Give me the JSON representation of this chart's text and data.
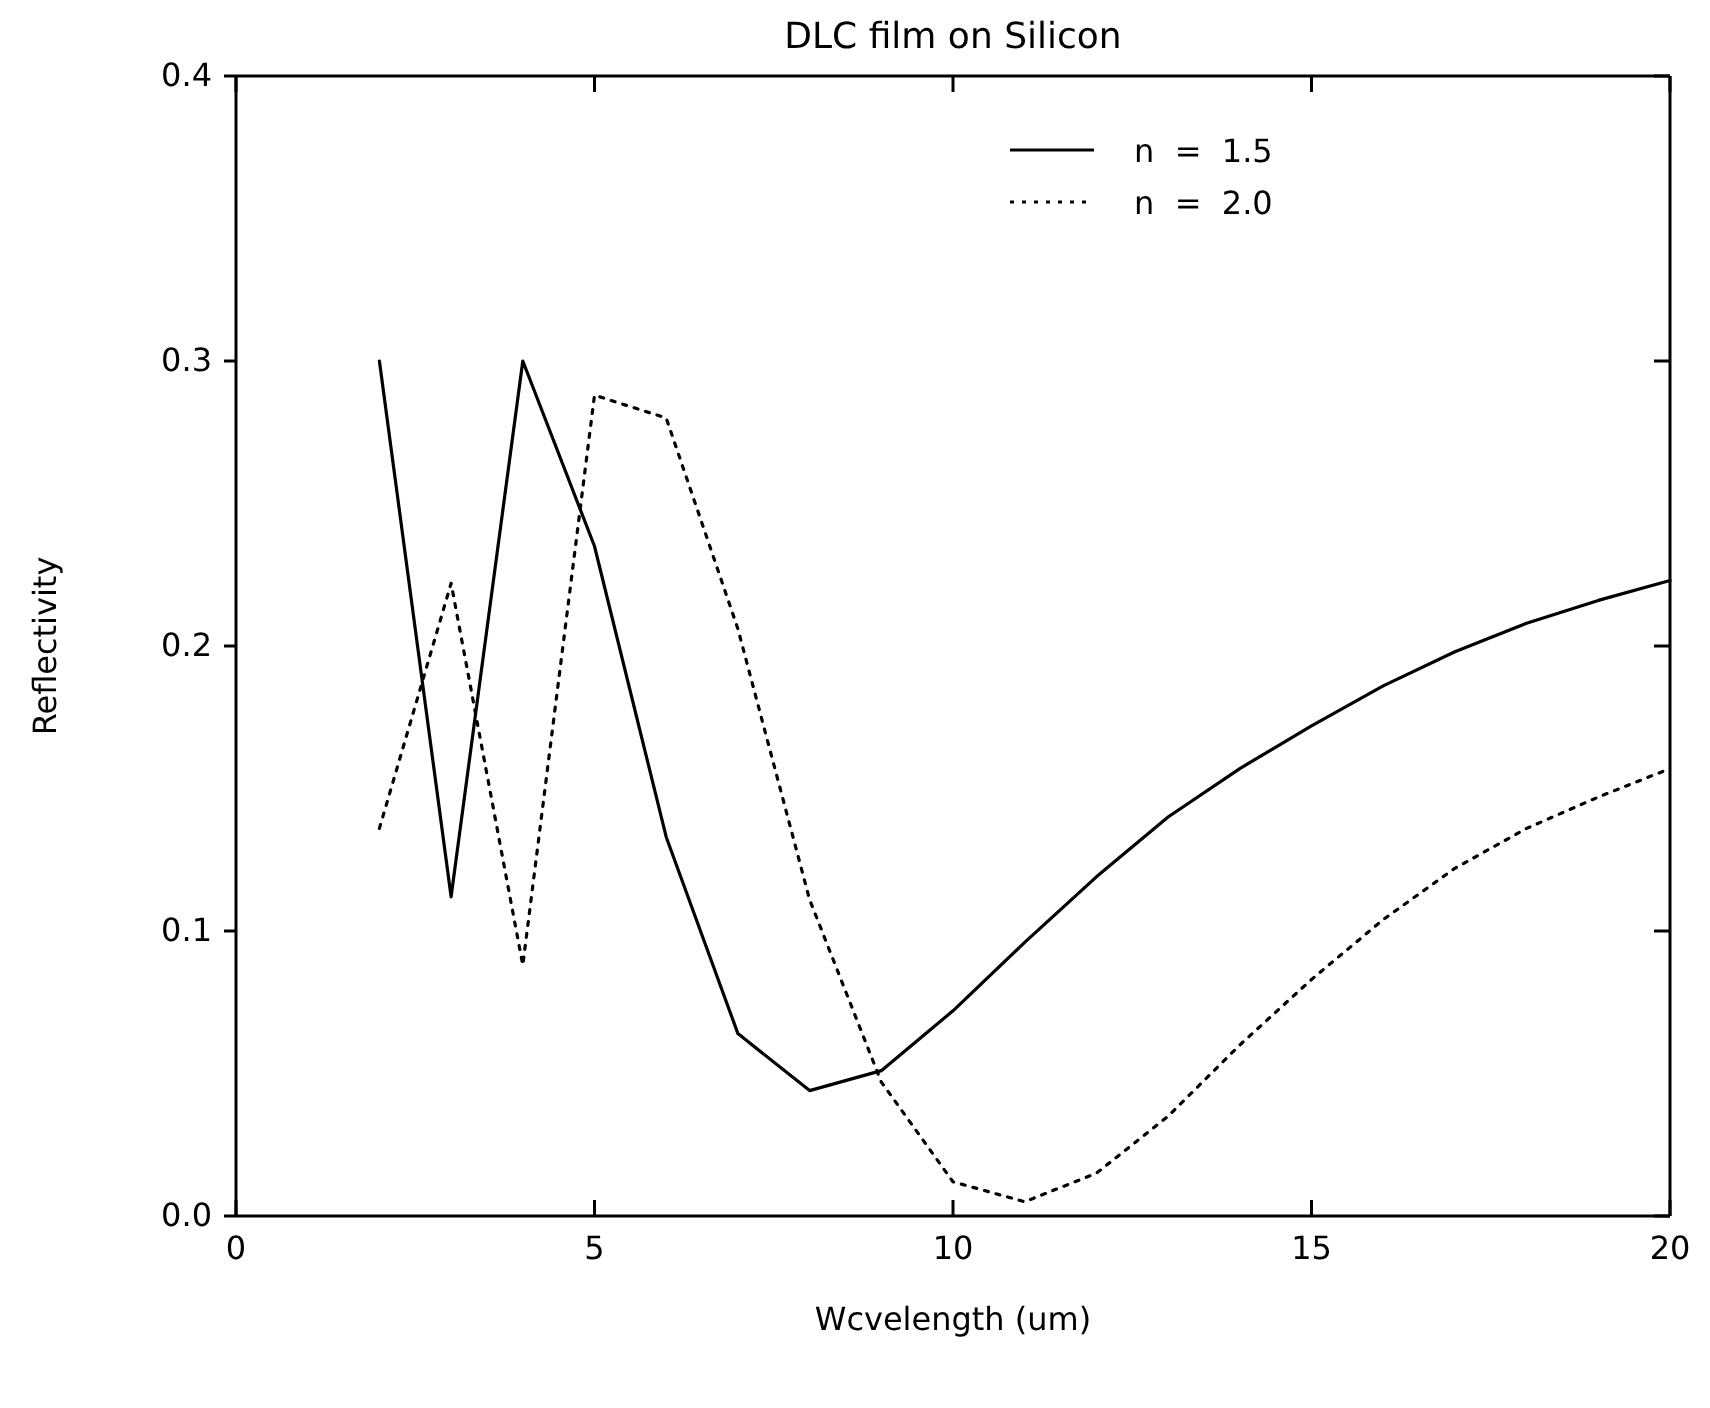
{
  "chart_data": {
    "type": "line",
    "title": "DLC film on Silicon",
    "xlabel": "Wcvelength (um)",
    "ylabel": "Reflectivity",
    "xlim": [
      0,
      20
    ],
    "xticks": [
      0,
      5,
      10,
      15,
      20
    ],
    "ylim": [
      0,
      0.4
    ],
    "yticks": [
      {
        "value": 0,
        "label": "0.0"
      },
      {
        "value": 0.1,
        "label": "0.1"
      },
      {
        "value": 0.2,
        "label": "0.2"
      },
      {
        "value": 0.3,
        "label": "0.3"
      },
      {
        "value": 0.4,
        "label": "0.4"
      }
    ],
    "x": [
      2,
      3,
      4,
      5,
      6,
      7,
      8,
      9,
      10,
      11,
      12,
      13,
      14,
      15,
      16,
      17,
      18,
      19,
      20
    ],
    "legend": "top right",
    "grid": false,
    "series": [
      {
        "name": "n  =  1.5",
        "color": "#000000",
        "line_style": "solid",
        "values": [
          0.3,
          0.112,
          0.3,
          0.235,
          0.133,
          0.064,
          0.044,
          0.051,
          0.072,
          0.096,
          0.119,
          0.14,
          0.157,
          0.172,
          0.186,
          0.198,
          0.208,
          0.216,
          0.223
        ]
      },
      {
        "name": "n  =  2.0",
        "color": "#000000",
        "line_style": "dotted",
        "values": [
          0.136,
          0.222,
          0.088,
          0.288,
          0.28,
          0.206,
          0.111,
          0.047,
          0.012,
          0.005,
          0.015,
          0.035,
          0.06,
          0.083,
          0.104,
          0.122,
          0.136,
          0.147,
          0.157
        ]
      }
    ]
  }
}
